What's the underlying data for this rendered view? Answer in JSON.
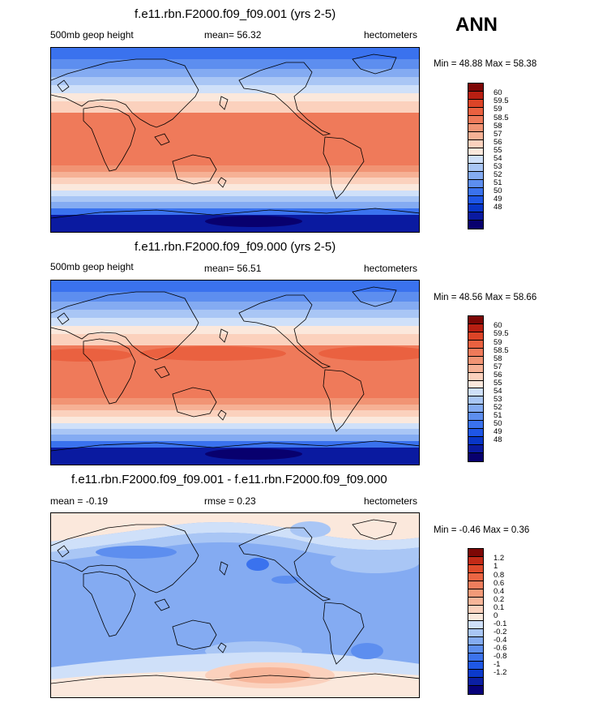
{
  "season": "ANN",
  "colors": {
    "abs": [
      "#08006e",
      "#0a1aa0",
      "#0836c8",
      "#1e56e6",
      "#3a72ee",
      "#5d8eef",
      "#84abf2",
      "#a9c6f5",
      "#cfe0f9",
      "#fbe8dc",
      "#fbd1bd",
      "#f6b195",
      "#f19474",
      "#ef7a5a",
      "#ea6140",
      "#dc4427",
      "#b81f12",
      "#7d0705"
    ],
    "diff": [
      "#07007a",
      "#0b1fa4",
      "#0b3acc",
      "#1f58e6",
      "#3c73ec",
      "#5d8eee",
      "#84abf1",
      "#a9c6f5",
      "#cfe0f9",
      "#fbe8dc",
      "#fbd1bd",
      "#f7b599",
      "#f39a78",
      "#ef7e5d",
      "#eb6543",
      "#df4b2b",
      "#c22a17",
      "#7d0705"
    ]
  },
  "panels": [
    {
      "title": "f.e11.rbn.F2000.f09_f09.001 (yrs 2-5)",
      "left_label": "500mb geop height",
      "center_label": "mean=  56.32",
      "units": "hectometers",
      "minmax": "Min =  48.88 Max =  58.38",
      "colorbar_labels": [
        "60",
        "59.5",
        "59",
        "58.5",
        "58",
        "57",
        "56",
        "55",
        "54",
        "53",
        "52",
        "51",
        "50",
        "49",
        "48"
      ]
    },
    {
      "title": "f.e11.rbn.F2000.f09_f09.000 (yrs 2-5)",
      "left_label": "500mb geop height",
      "center_label": "mean=  56.51",
      "units": "hectometers",
      "minmax": "Min =  48.56 Max =  58.66",
      "colorbar_labels": [
        "60",
        "59.5",
        "59",
        "58.5",
        "58",
        "57",
        "56",
        "55",
        "54",
        "53",
        "52",
        "51",
        "50",
        "49",
        "48"
      ]
    },
    {
      "title": "f.e11.rbn.F2000.f09_f09.001 - f.e11.rbn.F2000.f09_f09.000",
      "left_label": "mean =  -0.19",
      "center_label": "rmse =   0.23",
      "units": "hectometers",
      "minmax": "Min =  -0.46 Max =   0.36",
      "colorbar_labels": [
        "1.2",
        "1",
        "0.8",
        "0.6",
        "0.4",
        "0.2",
        "0.1",
        "0",
        "-0.1",
        "-0.2",
        "-0.4",
        "-0.6",
        "-0.8",
        "-1",
        "-1.2"
      ]
    }
  ]
}
